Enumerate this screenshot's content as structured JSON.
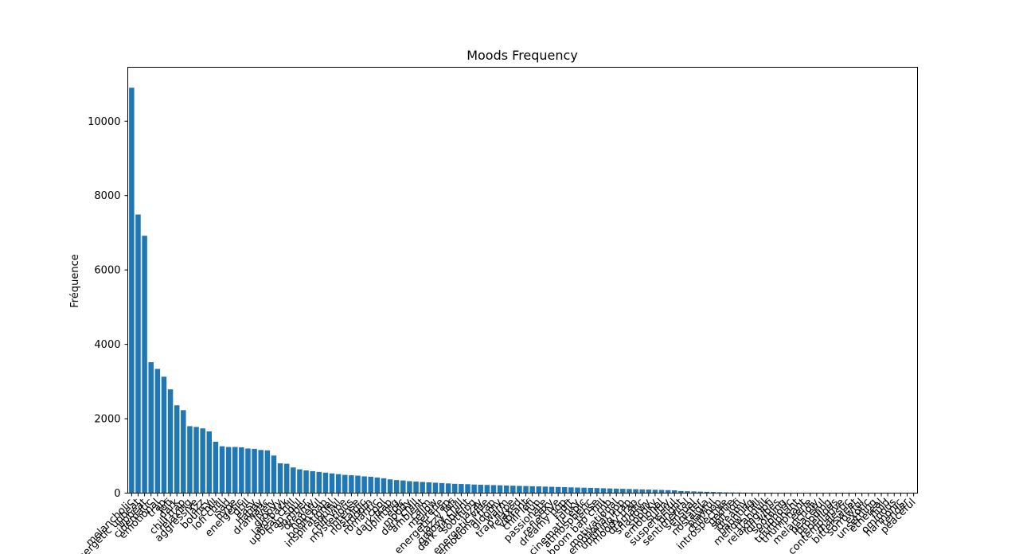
{
  "chart_data": {
    "type": "bar",
    "title": "Moods Frequency",
    "xlabel": "",
    "ylabel": "Fréquence",
    "ylim": [
      0,
      11450
    ],
    "yticks": [
      0,
      2000,
      4000,
      6000,
      8000,
      10000
    ],
    "grid": false,
    "bar_color": "#1f77b4",
    "categories": [
      "melancholic",
      "energetic upbeat",
      "upbeat",
      "cinematic",
      "emotional",
      "trap",
      "lofi",
      "dark",
      "chill trap",
      "relaxing",
      "aggressive",
      "jazz",
      "bouncy",
      "chill",
      "lofi chill",
      "sad",
      "hype",
      "energetic",
      "drill",
      "easy",
      "happy",
      "dramatic",
      "lively",
      "groovy",
      "laid-back",
      "upbeat chill",
      "trap soul",
      "somber",
      "dreamy",
      "hopeful",
      "boom bap",
      "inspirational",
      "soulful",
      "chill vibe",
      "mysterious",
      "intense",
      "nostalgic",
      "smooth",
      "romantic",
      "cool",
      "dark trap",
      "uplifting",
      "epic",
      "moody",
      "dark chill",
      "ambient",
      "calm",
      "mellow",
      "serene",
      "energetic trap",
      "jazzy lofi",
      "groovy chill",
      "dark ambient",
      "soothing",
      "jazzy",
      "energetic vibe",
      "emotional trap",
      "gloomy",
      "warm",
      "trap hype",
      "relaxed",
      "vibrant",
      "chill lofi",
      "fun",
      "passionate",
      "sexy",
      "reflective",
      "dreamy pop",
      "soft",
      "funky",
      "cinematic epic",
      "atmospheric",
      "tense",
      "boom bap chill",
      "rnb",
      "motivational",
      "emotional pop",
      "uplifting trap",
      "moody trap",
      "dramatic",
      "shadowy",
      "spooky",
      "emotional",
      "sultry",
      "suspenseful",
      "bright",
      "sentimental",
      "sensual",
      "sinister",
      "nostalgia",
      "playful",
      "chill hop",
      "introspective",
      "gentle",
      "soft lofi",
      "dreamy",
      "haunting",
      "mellow chill",
      "tranquil",
      "relaxing lofi",
      "lofi vibes",
      "soothing",
      "euphoric",
      "triumphant",
      "triumphant",
      "eerie",
      "melancholy",
      "peaceful",
      "brooding",
      "rebellious",
      "contemplative",
      "majestic",
      "bittersweet",
      "sorrowful",
      "exotic",
      "unsettling",
      "ethereal",
      "fluid",
      "ominous",
      "harmonic",
      "tender",
      "peaceful"
    ],
    "values": [
      10900,
      7490,
      6920,
      3520,
      3340,
      3130,
      2790,
      2360,
      2230,
      1800,
      1780,
      1740,
      1660,
      1380,
      1260,
      1240,
      1240,
      1230,
      1200,
      1190,
      1160,
      1150,
      1010,
      800,
      790,
      690,
      640,
      610,
      590,
      570,
      550,
      530,
      510,
      490,
      480,
      470,
      450,
      440,
      420,
      400,
      370,
      350,
      340,
      320,
      310,
      300,
      290,
      280,
      270,
      260,
      250,
      245,
      240,
      230,
      225,
      220,
      215,
      210,
      205,
      200,
      195,
      190,
      185,
      180,
      175,
      170,
      165,
      160,
      155,
      150,
      145,
      140,
      135,
      130,
      125,
      120,
      115,
      110,
      105,
      100,
      95,
      90,
      85,
      80,
      75,
      55,
      50,
      45,
      40,
      35,
      30,
      25,
      20,
      18,
      16,
      14,
      12,
      10,
      9,
      8,
      7,
      6,
      5,
      4,
      3,
      3,
      2,
      2,
      2,
      1,
      1,
      1,
      1,
      1,
      1,
      1,
      1,
      1,
      1,
      1,
      1,
      1
    ]
  }
}
